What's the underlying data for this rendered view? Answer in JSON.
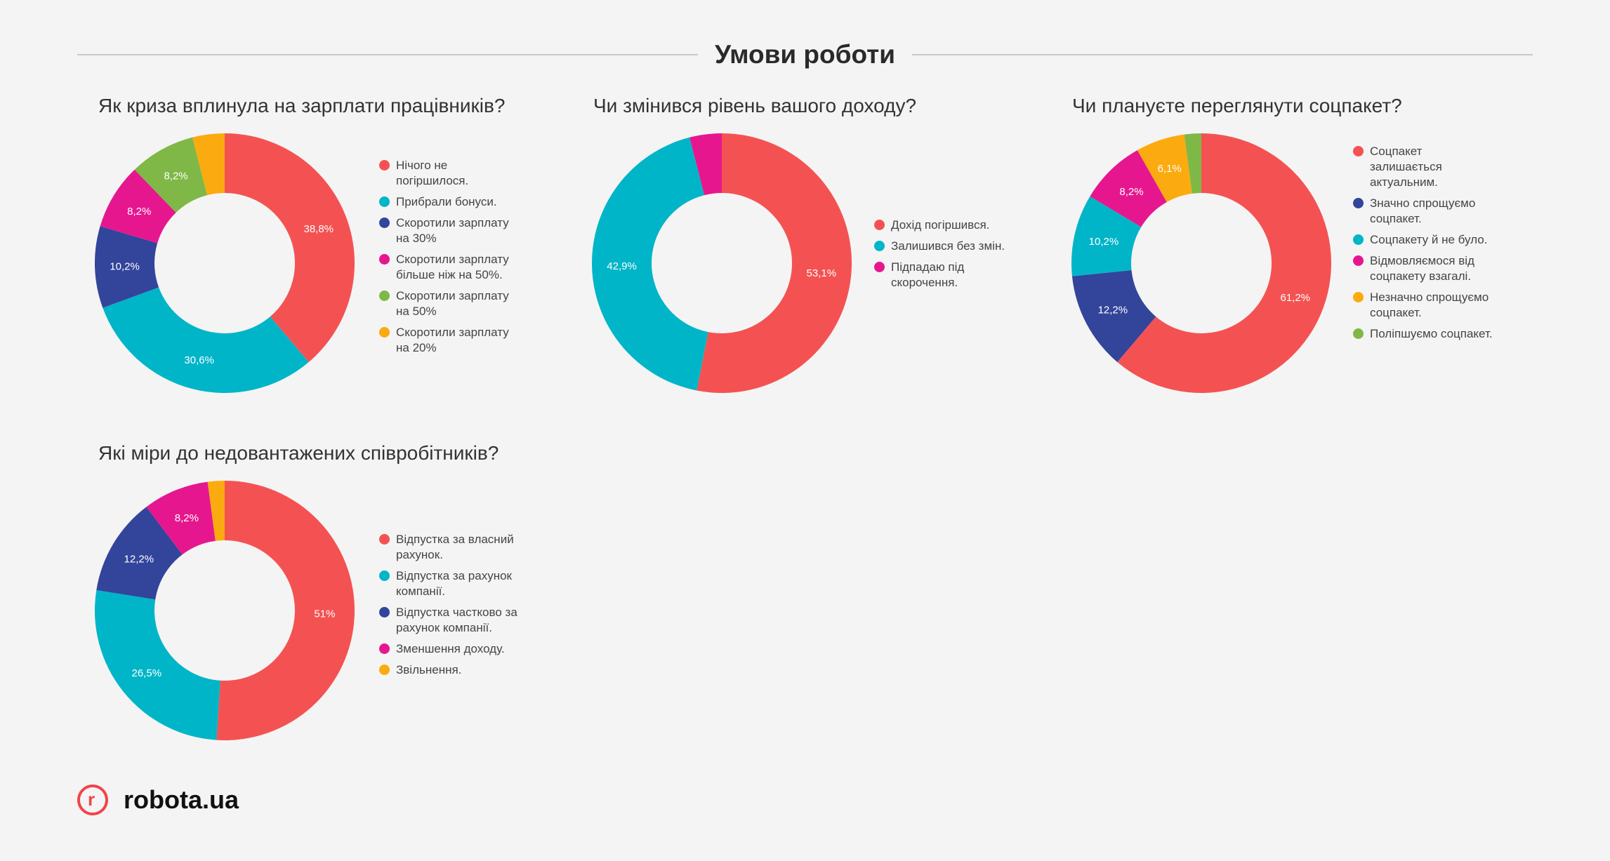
{
  "header": {
    "title": "Умови роботи"
  },
  "footer": {
    "brand": "robota.ua",
    "logo_letter": "r"
  },
  "colors": {
    "red": "#f45252",
    "teal": "#00b5c8",
    "navy": "#33449b",
    "magenta": "#e6178e",
    "green": "#7fb847",
    "orange": "#fbab0f"
  },
  "chart_data": [
    {
      "type": "pie",
      "donut": true,
      "title": "Як криза вплинула на зарплати працівників?",
      "series": [
        {
          "name": "Нічого не погіршилося.",
          "value": 38.8,
          "label": "38,8%",
          "color": "#f45252"
        },
        {
          "name": "Прибрали бонуси.",
          "value": 30.6,
          "label": "30,6%",
          "color": "#00b5c8"
        },
        {
          "name": "Скоротили зарплату на 30%",
          "value": 10.2,
          "label": "10,2%",
          "color": "#33449b"
        },
        {
          "name": "Скоротили зарплату більше ніж на 50%.",
          "value": 8.2,
          "label": "8,2%",
          "color": "#e6178e"
        },
        {
          "name": "Скоротили зарплату на 50%",
          "value": 8.2,
          "label": "8,2%",
          "color": "#7fb847"
        },
        {
          "name": "Скоротили зарплату на 20%",
          "value": 4.0,
          "label": "",
          "color": "#fbab0f"
        }
      ],
      "legend_position": "right"
    },
    {
      "type": "pie",
      "donut": true,
      "title": "Чи змінився рівень вашого доходу?",
      "series": [
        {
          "name": "Дохід погіршився.",
          "value": 53.1,
          "label": "53,1%",
          "color": "#f45252"
        },
        {
          "name": "Залишився без змін.",
          "value": 42.9,
          "label": "42,9%",
          "color": "#00b5c8"
        },
        {
          "name": "Підпадаю під скорочення.",
          "value": 4.0,
          "label": "",
          "color": "#e6178e"
        }
      ],
      "legend_position": "right"
    },
    {
      "type": "pie",
      "donut": true,
      "title": "Чи плануєте переглянути соцпакет?",
      "series": [
        {
          "name": "Соцпакет залишається актуальним.",
          "value": 61.2,
          "label": "61,2%",
          "color": "#f45252"
        },
        {
          "name": "Значно спрощуємо соцпакет.",
          "value": 12.2,
          "label": "12,2%",
          "color": "#33449b"
        },
        {
          "name": "Соцпакету й не було.",
          "value": 10.2,
          "label": "10,2%",
          "color": "#00b5c8"
        },
        {
          "name": "Відмовляємося від соцпакету взагалі.",
          "value": 8.2,
          "label": "8,2%",
          "color": "#e6178e"
        },
        {
          "name": "Незначно спрощуємо соцпакет.",
          "value": 6.1,
          "label": "6,1%",
          "color": "#fbab0f"
        },
        {
          "name": "Поліпшуємо соцпакет.",
          "value": 2.1,
          "label": "",
          "color": "#7fb847"
        }
      ],
      "legend_position": "right"
    },
    {
      "type": "pie",
      "donut": true,
      "title": "Які міри до недовантажених співробітників?",
      "series": [
        {
          "name": "Відпустка за власний рахунок.",
          "value": 51.0,
          "label": "51%",
          "color": "#f45252"
        },
        {
          "name": "Відпустка за рахунок компанії.",
          "value": 26.5,
          "label": "26,5%",
          "color": "#00b5c8"
        },
        {
          "name": "Відпустка частково за рахунок компанії.",
          "value": 12.2,
          "label": "12,2%",
          "color": "#33449b"
        },
        {
          "name": "Зменшення доходу.",
          "value": 8.2,
          "label": "8,2%",
          "color": "#e6178e"
        },
        {
          "name": "Звільнення.",
          "value": 2.1,
          "label": "",
          "color": "#fbab0f"
        }
      ],
      "legend_position": "right"
    }
  ]
}
